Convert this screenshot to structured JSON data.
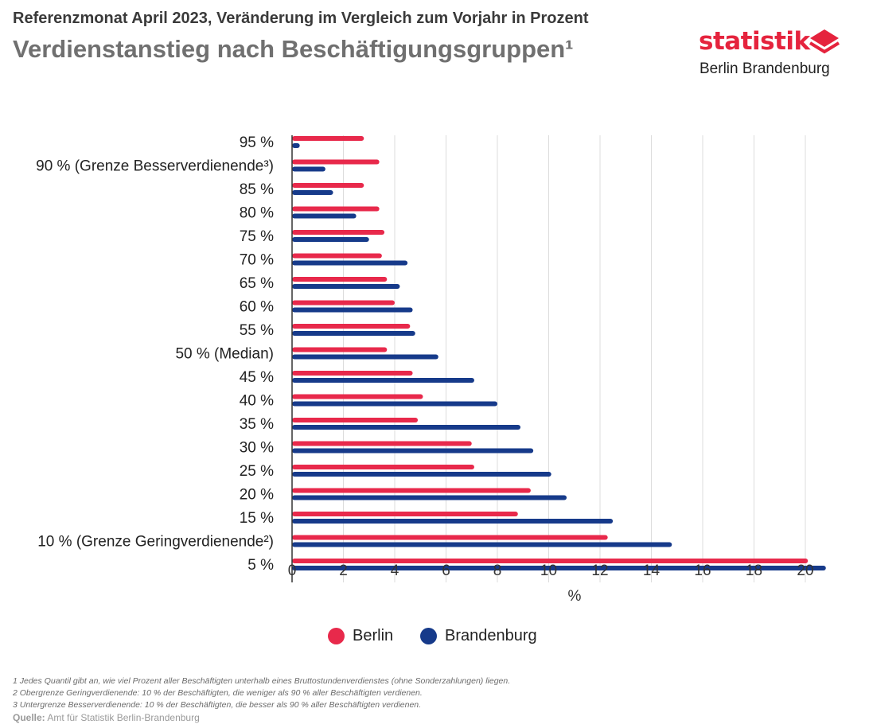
{
  "header": {
    "subtitle": "Referenzmonat April 2023, Veränderung im Vergleich zum Vorjahr in Prozent",
    "title": "Verdienstanstieg nach Beschäftigungsgruppen¹"
  },
  "logo": {
    "word": "statistik",
    "sub": "Berlin Brandenburg",
    "icon": "layered-diamond-icon",
    "color": "#e5233d"
  },
  "colors": {
    "berlin": "#e8294b",
    "brandenburg": "#163a8a",
    "grid": "#dcdcdc",
    "axis": "#333333"
  },
  "chart_data": {
    "type": "bar",
    "orientation": "horizontal",
    "categories": [
      "95 %",
      "90 % (Grenze Besserverdienende³)",
      "85 %",
      "80 %",
      "75 %",
      "70 %",
      "65 %",
      "60 %",
      "55 %",
      "50 % (Median)",
      "45 %",
      "40 %",
      "35 %",
      "30 %",
      "25 %",
      "20 %",
      "15 %",
      "10 % (Grenze Geringverdienende²)",
      "5 %"
    ],
    "series": [
      {
        "name": "Berlin",
        "values": [
          2.8,
          3.4,
          2.8,
          3.4,
          3.6,
          3.5,
          3.7,
          4.0,
          4.6,
          3.7,
          4.7,
          5.1,
          4.9,
          7.0,
          7.1,
          9.3,
          8.8,
          12.3,
          20.1
        ]
      },
      {
        "name": "Brandenburg",
        "values": [
          0.3,
          1.3,
          1.6,
          2.5,
          3.0,
          4.5,
          4.2,
          4.7,
          4.8,
          5.7,
          7.1,
          8.0,
          8.9,
          9.4,
          10.1,
          10.7,
          12.5,
          14.8,
          20.8
        ]
      }
    ],
    "xlabel": "%",
    "xlim": [
      0,
      22
    ],
    "xticks": [
      "0",
      "2",
      "4",
      "6",
      "8",
      "10",
      "12",
      "14",
      "16",
      "18",
      "20"
    ],
    "grid": true,
    "legend_position": "bottom"
  },
  "legend": {
    "items": [
      {
        "label": "Berlin"
      },
      {
        "label": "Brandenburg"
      }
    ]
  },
  "footnotes": [
    "1 Jedes Quantil gibt an, wie viel Prozent aller Beschäftigten unterhalb eines Bruttostundenverdienstes (ohne Sonderzahlungen) liegen.",
    "2 Obergrenze Geringverdienende: 10 % der Beschäftigten, die weniger als 90 % aller Beschäftigten verdienen.",
    "3 Untergrenze Besserverdienende: 10 % der Beschäftigten, die besser als 90 % aller Beschäftigten verdienen."
  ],
  "source": {
    "label": "Quelle:",
    "text": " Amt für Statistik Berlin-Brandenburg"
  }
}
